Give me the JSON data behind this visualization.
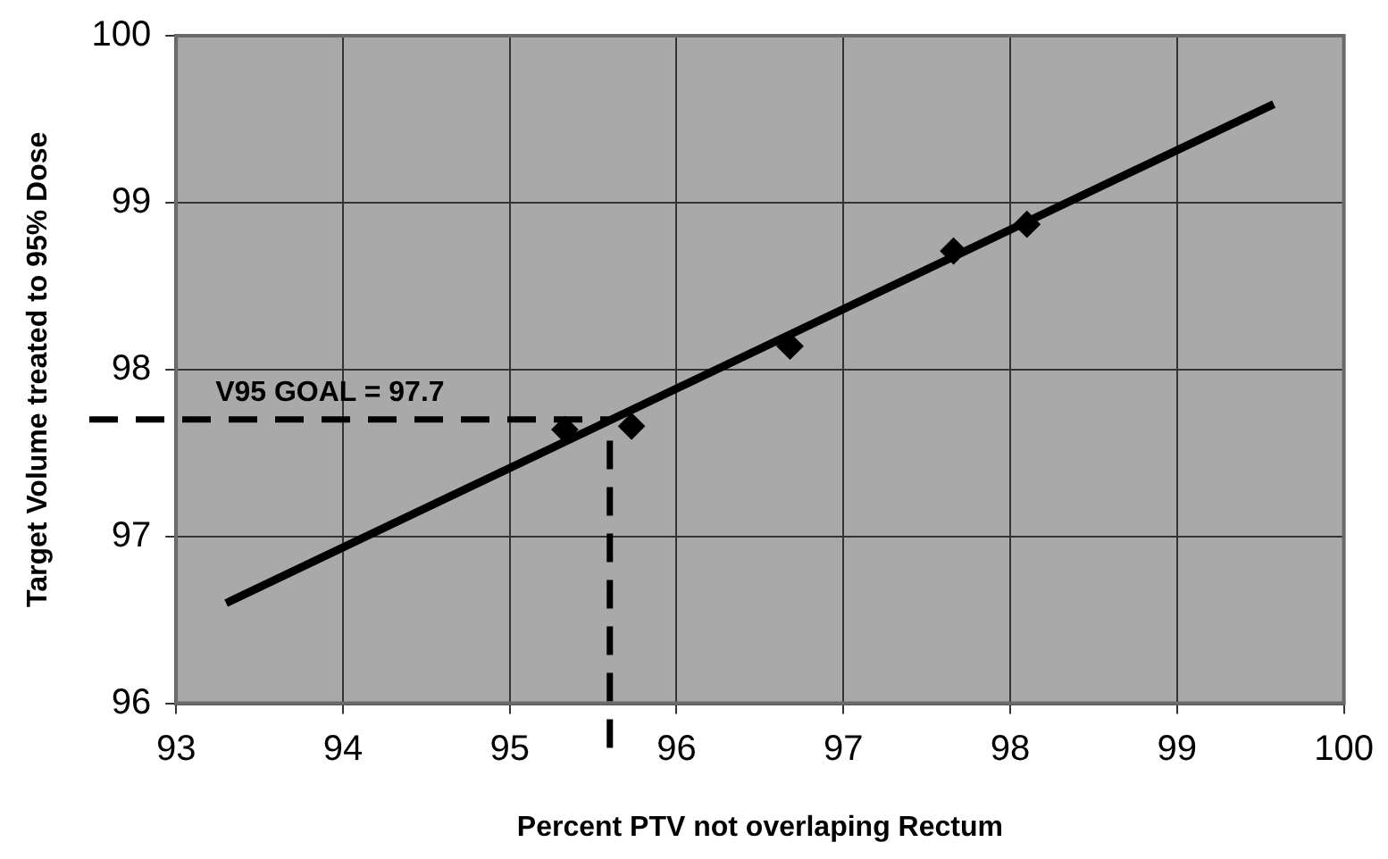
{
  "chart_data": {
    "type": "scatter",
    "xlabel": "Percent PTV not overlaping Rectum",
    "ylabel": "Target Volume treated to 95% Dose",
    "xlim": [
      93,
      100
    ],
    "xticks": [
      93,
      94,
      95,
      96,
      97,
      98,
      99,
      100
    ],
    "ylim": [
      96,
      100
    ],
    "yticks": [
      96,
      97,
      98,
      99,
      100
    ],
    "grid": true,
    "legend": false,
    "marker": "diamond",
    "series": [
      {
        "type": "scatter",
        "color": "#000000",
        "x": [
          95.33,
          95.73,
          96.68,
          97.66,
          98.1
        ],
        "values": [
          97.64,
          97.66,
          98.14,
          98.71,
          98.87
        ]
      },
      {
        "type": "line",
        "color": "#000000",
        "marker": "none",
        "x": [
          93.3,
          99.58
        ],
        "values": [
          96.6,
          99.59
        ]
      }
    ],
    "ref_lines": [
      {
        "axis": "y",
        "value": 97.7,
        "label": "V95 GOAL = 97.7",
        "color": "#000000",
        "line_style": "dashed"
      },
      {
        "axis": "x",
        "value": 95.6,
        "color": "#000000",
        "line_style": "dashed"
      }
    ]
  }
}
